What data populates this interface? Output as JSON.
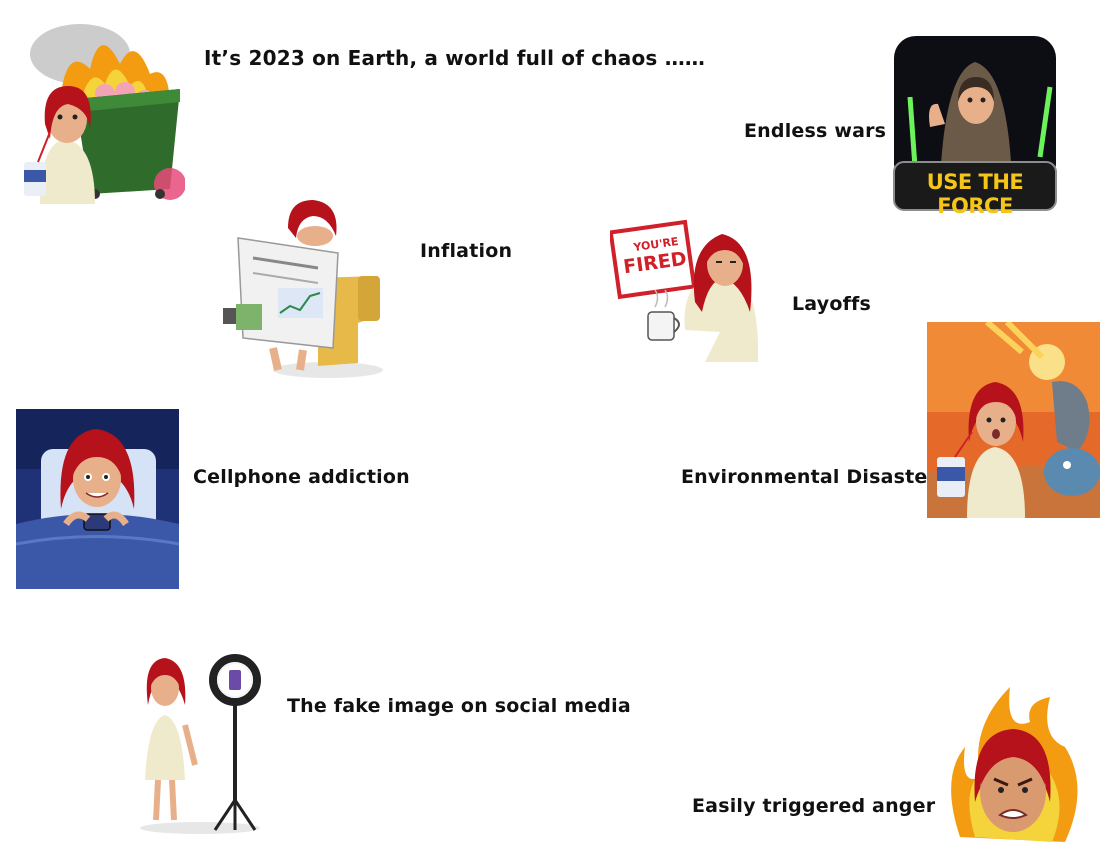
{
  "header": {
    "text": "It’s 2023 on Earth, a world full of chaos ……"
  },
  "captions": {
    "wars": "Endless wars",
    "inflation": "Inflation",
    "layoffs": "Layoffs",
    "cellphone": "Cellphone addiction",
    "environment": "Environmental Disasters",
    "fake_image": "The fake image on social media",
    "anger": "Easily triggered anger"
  },
  "stickers": {
    "force_banner": "USE THE FORCE",
    "fired_stamp_top": "YOU'RE",
    "fired_stamp_bottom": "FIRED"
  },
  "colors": {
    "hair": "#b5121b",
    "skin": "#e8b08a",
    "dress": "#efeacc",
    "fire": "#f39c12",
    "force_text": "#f5c518",
    "stamp_red": "#d0202a",
    "bed_blue": "#3b57a8",
    "dumpster_green": "#2f6b2a"
  }
}
